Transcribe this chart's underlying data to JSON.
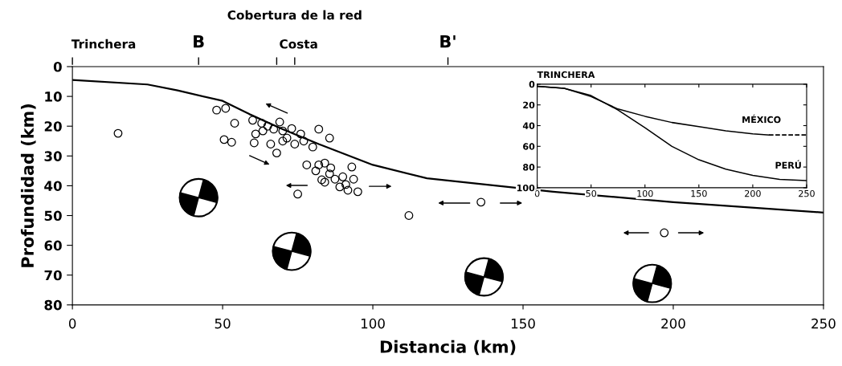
{
  "chart_data": [
    {
      "type": "scatter",
      "xlabel": "Distancia (km)",
      "ylabel": "Profundidad (km)",
      "xlim": [
        0,
        250
      ],
      "ylim": [
        80,
        0
      ],
      "xticks": [
        0,
        50,
        100,
        150,
        200,
        250
      ],
      "yticks": [
        0,
        10,
        20,
        30,
        40,
        50,
        60,
        70,
        80
      ],
      "annotations": [
        "Trinchera",
        "B",
        "Costa",
        "Cobertura de la red",
        "B'"
      ],
      "series": [
        {
          "type": "line",
          "marker": "none",
          "color": "#000000",
          "x": [
            0,
            25,
            35,
            50,
            59,
            70,
            82,
            100,
            118,
            160,
            200,
            250
          ],
          "values": [
            4.5,
            6,
            8,
            11.5,
            16,
            21,
            26,
            33,
            37.5,
            42,
            45.5,
            49
          ]
        },
        {
          "type": "scatter",
          "marker": "circle",
          "color": "#000000",
          "x": [
            15.2,
            48,
            51,
            54,
            50.5,
            53,
            60,
            61,
            60.5,
            63,
            65,
            67,
            66,
            68,
            69,
            70,
            71.4,
            73,
            74,
            76,
            77,
            80,
            82,
            85.6,
            78,
            82,
            84,
            85.6,
            84,
            87.4,
            89,
            91.7,
            93,
            93.6,
            95,
            75,
            112,
            136,
            197,
            63.4,
            70,
            81,
            86,
            91,
            83,
            90
          ],
          "values": [
            22.4,
            14.6,
            14,
            19,
            24.5,
            25.4,
            18,
            22.6,
            25.6,
            19,
            20,
            21,
            26,
            29,
            18.6,
            21.6,
            24,
            20.8,
            26,
            22.6,
            25,
            27,
            21,
            24,
            33,
            33,
            32.4,
            36,
            38.8,
            37.8,
            40.4,
            41.5,
            33.7,
            37.8,
            42,
            42.8,
            50,
            45.5,
            55.8,
            21.6,
            25,
            35,
            34,
            39.6,
            38,
            37
          ]
        }
      ]
    },
    {
      "type": "line",
      "xlim": [
        0,
        250
      ],
      "ylim": [
        100,
        0
      ],
      "xticks": [
        0,
        50,
        100,
        150,
        200,
        250
      ],
      "yticks": [
        0,
        20,
        40,
        60,
        80,
        100
      ],
      "annotations": [
        {
          "text": "TRINCHERA",
          "x": 0,
          "y": 0
        }
      ],
      "series": [
        {
          "name": "MÉXICO",
          "color": "#000000",
          "x": [
            0,
            25,
            50,
            75,
            100,
            125,
            150,
            175,
            200,
            215
          ],
          "values": [
            2,
            4,
            12,
            24,
            31,
            37,
            41,
            45,
            48,
            49
          ]
        },
        {
          "color": "#000000",
          "line_style": "dashed",
          "x": [
            215,
            250
          ],
          "values": [
            49,
            49
          ]
        },
        {
          "name": "PERÚ",
          "color": "#000000",
          "x": [
            0,
            25,
            50,
            75,
            100,
            125,
            150,
            175,
            200,
            225,
            250
          ],
          "values": [
            2,
            4,
            11,
            25,
            42,
            60,
            73,
            82,
            88,
            92,
            93
          ]
        }
      ]
    }
  ]
}
